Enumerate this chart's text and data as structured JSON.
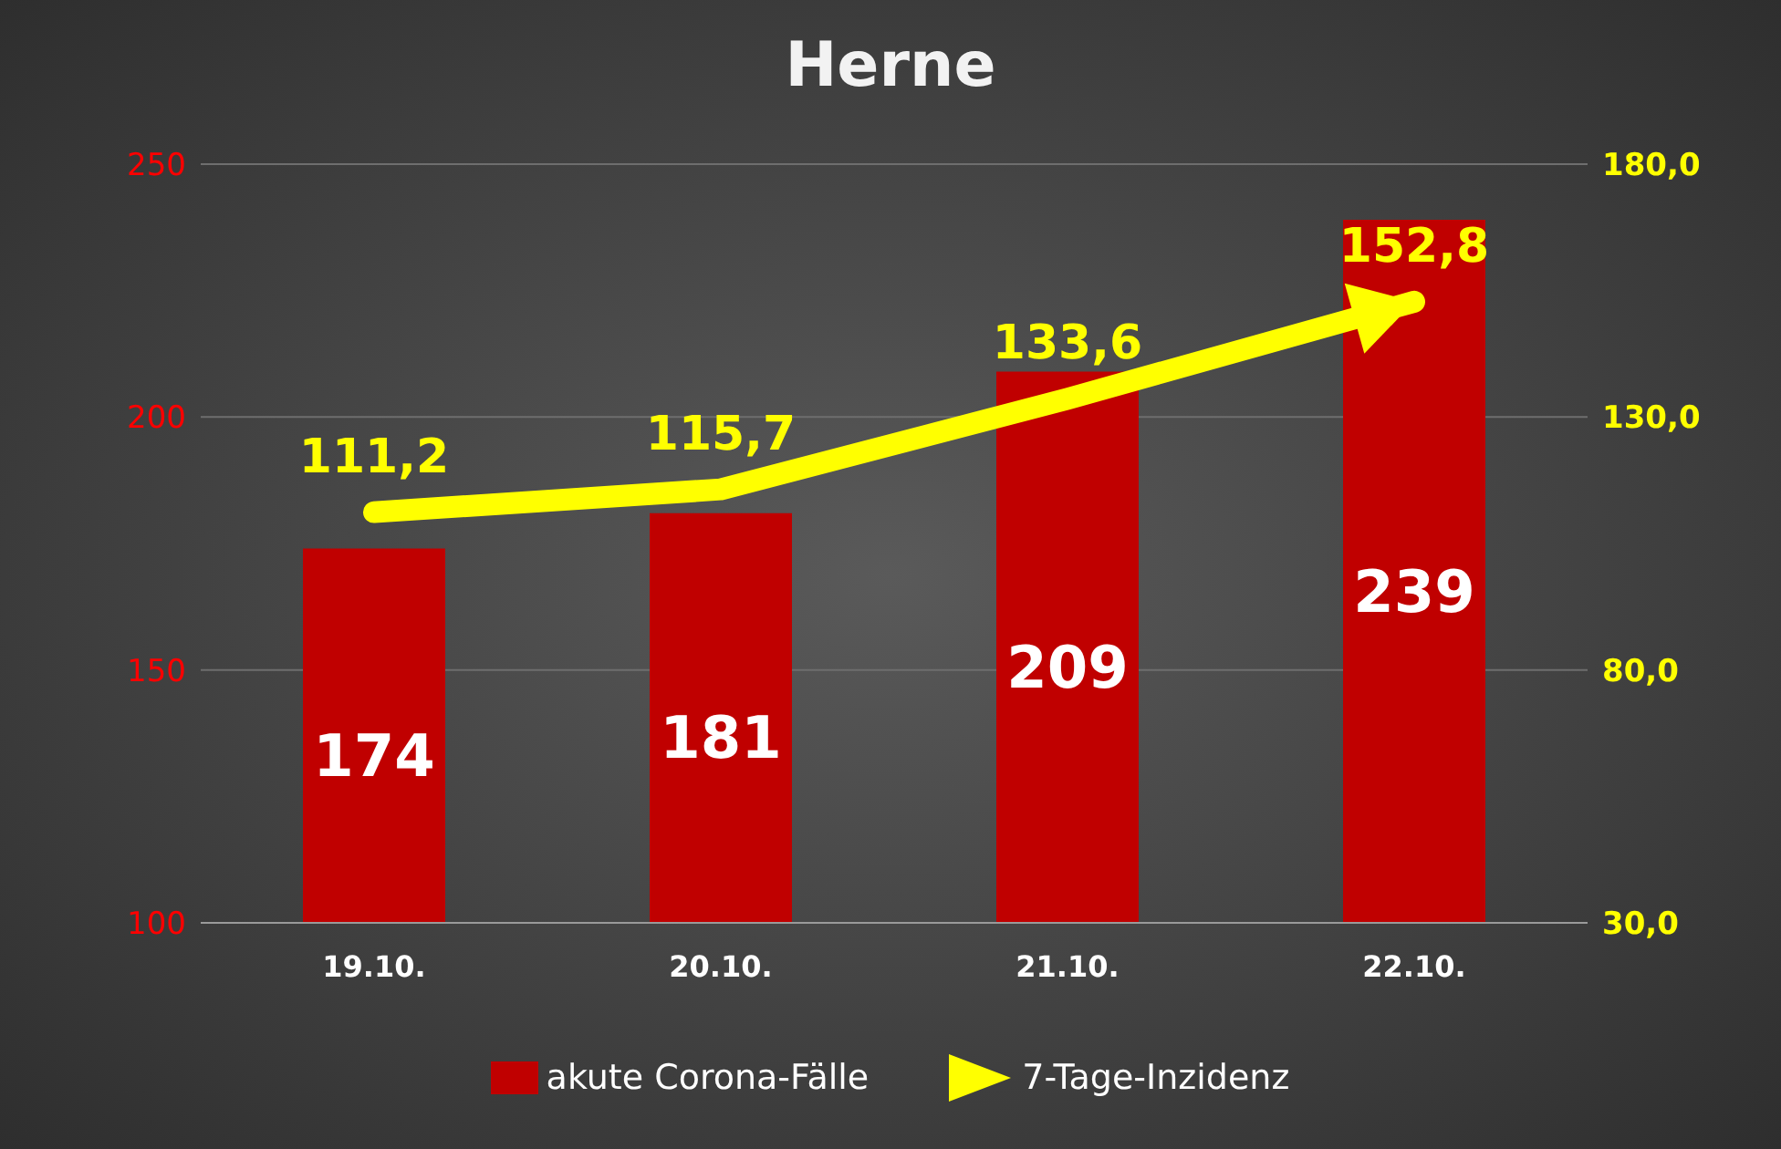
{
  "chart_data": {
    "type": "bar",
    "title": "Herne",
    "categories": [
      "19.10.",
      "20.10.",
      "21.10.",
      "22.10."
    ],
    "series": [
      {
        "name": "akute Corona-Fälle",
        "color": "#c00000",
        "values": [
          174,
          181,
          209,
          239
        ],
        "value_labels": [
          "174",
          "181",
          "209",
          "239"
        ]
      },
      {
        "name": "7-Tage-Inzidenz",
        "type": "line",
        "color": "#ffff00",
        "axis": "y2",
        "values": [
          111.2,
          115.7,
          133.6,
          152.8
        ],
        "value_labels": [
          "111,2",
          "115,7",
          "133,6",
          "152,8"
        ]
      }
    ],
    "ylim": [
      100,
      250
    ],
    "yticks": [
      100,
      150,
      200,
      250
    ],
    "y2lim": [
      30,
      180
    ],
    "y2ticks": [
      {
        "value": 30,
        "label": "30,0"
      },
      {
        "value": 80,
        "label": "80,0"
      },
      {
        "value": 130,
        "label": "130,0"
      },
      {
        "value": 180,
        "label": "180,0"
      }
    ],
    "grid": "y",
    "legend": "bottom",
    "marker": "none"
  }
}
